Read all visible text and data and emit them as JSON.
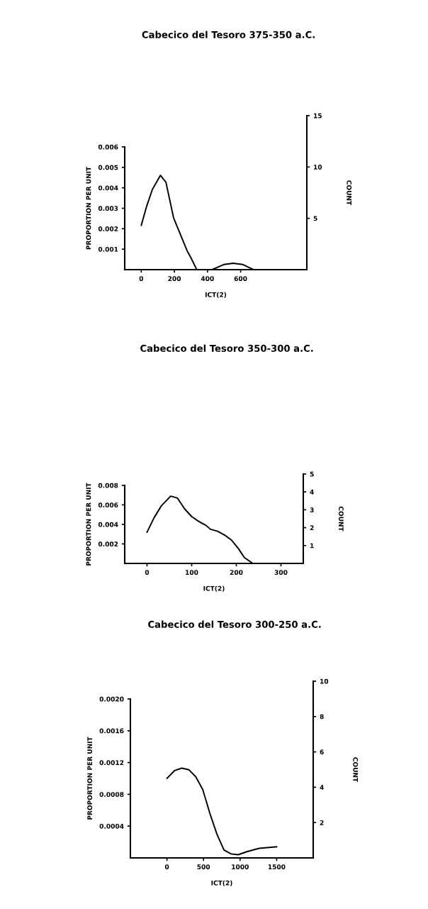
{
  "chart_data": [
    {
      "type": "line",
      "title": "Cabecico del Tesoro 375-350 a.C.",
      "xlabel": "ICT(2)",
      "ylabel": "PROPORTION PER UNIT",
      "y2label": "COUNT",
      "x": [
        0,
        33,
        67,
        116,
        149,
        195,
        242,
        277,
        300,
        335,
        428,
        498,
        556,
        614,
        678
      ],
      "series": [
        {
          "color": "#000000",
          "values": [
            0.00217,
            0.00311,
            0.00392,
            0.00461,
            0.00427,
            0.00254,
            0.00161,
            0.00092,
            0.00058,
            0,
            0,
            0.00025,
            0.00031,
            0.00025,
            0
          ]
        }
      ],
      "xlim": [
        -100,
        1000
      ],
      "xticks": [
        0,
        200,
        400,
        600
      ],
      "ylim": [
        0,
        0.006
      ],
      "yticks": [
        0.001,
        0.002,
        0.003,
        0.004,
        0.005,
        0.006
      ],
      "y2lim": [
        0,
        15
      ],
      "y2ticks": [
        5,
        10,
        15
      ]
    },
    {
      "type": "line",
      "title": "Cabecico del Tesoro 350-300 a.C.",
      "xlabel": "ICT(2)",
      "ylabel": "PROPORTION PER UNIT",
      "y2label": "COUNT",
      "x": [
        0,
        16,
        32,
        53,
        68,
        84,
        100,
        116,
        132,
        142,
        158,
        174,
        189,
        205,
        218,
        237,
        295
      ],
      "series": [
        {
          "color": "#000000",
          "values": [
            0.0032,
            0.0047,
            0.0059,
            0.0069,
            0.0067,
            0.0056,
            0.0048,
            0.0043,
            0.0039,
            0.0035,
            0.0033,
            0.0029,
            0.0024,
            0.0015,
            0.0006,
            0,
            0
          ]
        }
      ],
      "xlim": [
        -50,
        350
      ],
      "xticks": [
        0,
        100,
        200,
        300
      ],
      "ylim": [
        0,
        0.008
      ],
      "yticks": [
        0.002,
        0.004,
        0.006,
        0.008
      ],
      "y2lim": [
        0,
        5
      ],
      "y2ticks": [
        1,
        2,
        3,
        4,
        5
      ]
    },
    {
      "type": "line",
      "title": "Cabecico del Tesoro 300-250 a.C.",
      "xlabel": "ICT(2)",
      "ylabel": "PROPORTION PER UNIT",
      "y2label": "COUNT",
      "x": [
        0,
        106,
        203,
        299,
        395,
        490,
        587,
        683,
        780,
        877,
        974,
        1100,
        1261,
        1500
      ],
      "series": [
        {
          "color": "#000000",
          "values": [
            0.001,
            0.0011,
            0.00113,
            0.00111,
            0.00102,
            0.00086,
            0.00056,
            0.0003,
            0.0001,
            5e-05,
            4e-05,
            8e-05,
            0.00012,
            0.00014
          ]
        }
      ],
      "xlim": [
        -500,
        2000
      ],
      "xticks": [
        0,
        500,
        1000,
        1500
      ],
      "ylim": [
        0,
        0.002
      ],
      "yticks": [
        0.0004,
        0.0008,
        0.0012,
        0.0016,
        {
          "value": 0.002,
          "label": "0.0020"
        }
      ],
      "y2lim": [
        0,
        10
      ],
      "y2ticks": [
        2,
        4,
        6,
        8,
        10
      ]
    }
  ]
}
